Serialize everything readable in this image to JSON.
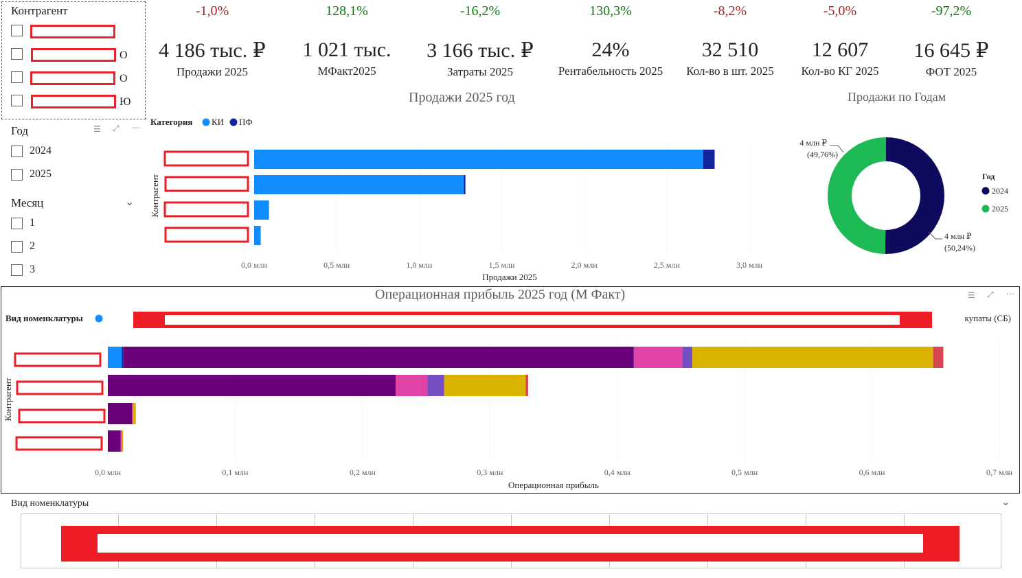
{
  "slicers": {
    "counterparty": {
      "title": "Контрагент",
      "items": [
        {
          "suffix": ""
        },
        {
          "suffix": "О"
        },
        {
          "suffix": "О"
        },
        {
          "suffix": "Ю"
        }
      ]
    },
    "year": {
      "title": "Год",
      "items": [
        "2024",
        "2025"
      ]
    },
    "month": {
      "title": "Месяц",
      "items": [
        "1",
        "2",
        "3"
      ]
    },
    "nomenclature": {
      "title": "Вид номенклатуры"
    }
  },
  "kpis": [
    {
      "delta": "-1,0%",
      "value": "4 186 тыс. ₽",
      "label": "Продажи 2025",
      "trend": "neg"
    },
    {
      "delta": "128,1%",
      "value": "1 021 тыс.",
      "label": "МФакт2025",
      "trend": "pos"
    },
    {
      "delta": "-16,2%",
      "value": "3 166 тыс. ₽",
      "label": "Затраты 2025",
      "trend": "pos"
    },
    {
      "delta": "130,3%",
      "value": "24%",
      "label": "Рентабельность 2025",
      "trend": "pos"
    },
    {
      "delta": "-8,2%",
      "value": "32 510",
      "label": "Кол-во в шт. 2025",
      "trend": "neg"
    },
    {
      "delta": "-5,0%",
      "value": "12 607",
      "label": "Кол-во КГ 2025",
      "trend": "neg"
    },
    {
      "delta": "-97,2%",
      "value": "16 645 ₽",
      "label": "ФОТ 2025",
      "trend": "pos"
    }
  ],
  "colors": {
    "ki": "#118dff",
    "pf": "#12239e",
    "y2024": "#0e0b5e",
    "y2025": "#1db954",
    "purple": "#6b007b",
    "pink": "#e044a7",
    "violet": "#744ec2",
    "gold": "#d9b300",
    "red": "#d64550",
    "redact": "#ee1c25"
  },
  "chart_data": [
    {
      "type": "bar",
      "title": "Продажи 2025 год",
      "legend_title": "Категория",
      "xlabel": "Продажи 2025",
      "ylabel": "Контрагент",
      "xlim": [
        0,
        3.1
      ],
      "ticks": [
        "0,0 млн",
        "0,5 млн",
        "1,0 млн",
        "1,5 млн",
        "2,0 млн",
        "2,5 млн",
        "3,0 млн"
      ],
      "tick_values": [
        0,
        0.5,
        1.0,
        1.5,
        2.0,
        2.5,
        3.0
      ],
      "series": [
        {
          "name": "КИ",
          "values": [
            2.72,
            1.27,
            0.09,
            0.04
          ]
        },
        {
          "name": "ПФ",
          "values": [
            0.07,
            0.01,
            0.0,
            0.0
          ]
        }
      ]
    },
    {
      "type": "pie",
      "title": "Продажи по Годам",
      "legend_title": "Год",
      "slices": [
        {
          "name": "2024",
          "value": 50.24,
          "label": "4 млн ₽",
          "pct": "(50,24%)"
        },
        {
          "name": "2025",
          "value": 49.76,
          "label": "4 млн ₽",
          "pct": "(49,76%)"
        }
      ]
    },
    {
      "type": "bar",
      "title": "Операционная прибыль 2025 год (М Факт)",
      "legend_title": "Вид номенклатуры",
      "legend_last": "купаты (СБ)",
      "xlabel": "Операционная прибыль",
      "ylabel": "Контрагент",
      "xlim": [
        0,
        0.7
      ],
      "ticks": [
        "0,0 млн",
        "0,1 млн",
        "0,2 млн",
        "0,3 млн",
        "0,4 млн",
        "0,5 млн",
        "0,6 млн",
        "0,7 млн"
      ],
      "tick_values": [
        0,
        0.1,
        0.2,
        0.3,
        0.4,
        0.5,
        0.6,
        0.7
      ],
      "series": [
        {
          "color": "ki",
          "values": [
            0.011,
            0.0,
            0.0,
            0.0
          ]
        },
        {
          "color": "pf",
          "values": [
            0.001,
            0.0,
            0.0,
            0.0
          ]
        },
        {
          "color": "purple",
          "values": [
            0.401,
            0.226,
            0.019,
            0.01
          ]
        },
        {
          "color": "pink",
          "values": [
            0.038,
            0.025,
            0.001,
            0.001
          ]
        },
        {
          "color": "violet",
          "values": [
            0.008,
            0.013,
            0.0,
            0.0
          ]
        },
        {
          "color": "gold",
          "values": [
            0.189,
            0.064,
            0.002,
            0.001
          ]
        },
        {
          "color": "red",
          "values": [
            0.008,
            0.002,
            0.0,
            0.0
          ]
        }
      ]
    }
  ]
}
